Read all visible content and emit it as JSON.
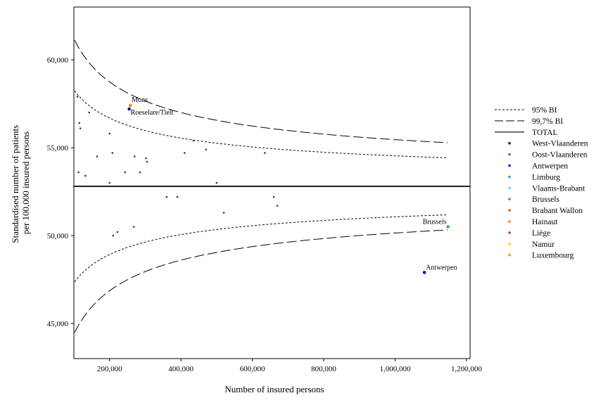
{
  "chart_data": {
    "type": "scatter",
    "subtype": "funnel-plot",
    "xlabel": "Number of insured persons",
    "ylabel_lines": [
      "Standardised number of patients",
      "per 100,000 insured persons"
    ],
    "xlim": [
      100000,
      1210000
    ],
    "ylim": [
      43000,
      63000
    ],
    "x_ticks": [
      200000,
      400000,
      600000,
      800000,
      1000000,
      1200000
    ],
    "x_tick_labels": [
      "200,000",
      "400,000",
      "600,000",
      "800,000",
      "1,000,000",
      "1,200,000"
    ],
    "y_ticks": [
      45000,
      50000,
      55000,
      60000
    ],
    "y_tick_labels": [
      "45,000",
      "50,000",
      "55,000",
      "60,000"
    ],
    "grid": false,
    "legend_position": "right",
    "total": 52800,
    "bands": [
      {
        "name": "95% BI",
        "style": "dotted",
        "ci_z": 1.96
      },
      {
        "name": "99,7% BI",
        "style": "dashed",
        "ci_z": 3.0
      }
    ],
    "band_scale": 28000,
    "total_label": "TOTAL",
    "regions": [
      {
        "name": "West-Vlaanderen",
        "color": "#1a1a8c"
      },
      {
        "name": "Oost-Vlaanderen",
        "color": "#4472c4"
      },
      {
        "name": "Antwerpen",
        "color": "#0000ff"
      },
      {
        "name": "Limburg",
        "color": "#3399dd"
      },
      {
        "name": "Vlaams-Brabant",
        "color": "#88ccee"
      },
      {
        "name": "Brussels",
        "color": "#33bb33"
      },
      {
        "name": "Brabant Wallon",
        "color": "#dd6622"
      },
      {
        "name": "Hainaut",
        "color": "#ff8800"
      },
      {
        "name": "Liège",
        "color": "#c04040"
      },
      {
        "name": "Namur",
        "color": "#ffd700"
      },
      {
        "name": "Luxembourg",
        "color": "#e6a020"
      }
    ],
    "points": [
      {
        "x": 110000,
        "y": 57900,
        "color": "#333333"
      },
      {
        "x": 115000,
        "y": 56400,
        "color": "#333333"
      },
      {
        "x": 118000,
        "y": 56100,
        "color": "#333333"
      },
      {
        "x": 143000,
        "y": 57000,
        "color": "#333333"
      },
      {
        "x": 113000,
        "y": 53600,
        "color": "#333333"
      },
      {
        "x": 132000,
        "y": 53400,
        "color": "#333333"
      },
      {
        "x": 165000,
        "y": 54500,
        "color": "#333333"
      },
      {
        "x": 200000,
        "y": 55800,
        "color": "#333333"
      },
      {
        "x": 208000,
        "y": 54700,
        "color": "#333333"
      },
      {
        "x": 200000,
        "y": 53000,
        "color": "#333333"
      },
      {
        "x": 243000,
        "y": 53600,
        "color": "#333333"
      },
      {
        "x": 270000,
        "y": 54500,
        "color": "#333333"
      },
      {
        "x": 285000,
        "y": 53600,
        "color": "#333333"
      },
      {
        "x": 302000,
        "y": 54400,
        "color": "#333333"
      },
      {
        "x": 305000,
        "y": 54200,
        "color": "#333333"
      },
      {
        "x": 410000,
        "y": 54700,
        "color": "#333333"
      },
      {
        "x": 435000,
        "y": 55400,
        "color": "#333333"
      },
      {
        "x": 470000,
        "y": 54900,
        "color": "#333333"
      },
      {
        "x": 500000,
        "y": 53000,
        "color": "#333333"
      },
      {
        "x": 635000,
        "y": 54700,
        "color": "#333333"
      },
      {
        "x": 360000,
        "y": 52200,
        "color": "#333333"
      },
      {
        "x": 390000,
        "y": 52200,
        "color": "#333333"
      },
      {
        "x": 660000,
        "y": 52200,
        "color": "#333333"
      },
      {
        "x": 670000,
        "y": 51700,
        "color": "#333333"
      },
      {
        "x": 520000,
        "y": 51300,
        "color": "#333333"
      },
      {
        "x": 210000,
        "y": 50000,
        "color": "#333333"
      },
      {
        "x": 222000,
        "y": 50200,
        "color": "#333333"
      },
      {
        "x": 268000,
        "y": 50500,
        "color": "#333333"
      },
      {
        "x": 258000,
        "y": 57400,
        "color": "#ff8800",
        "label": "Mons"
      },
      {
        "x": 255000,
        "y": 57200,
        "color": "#1a1a8c",
        "label": "Roeselare/Tielt"
      },
      {
        "x": 1148000,
        "y": 50500,
        "color": "#33bb33",
        "label": "Brussels"
      },
      {
        "x": 1082000,
        "y": 47900,
        "color": "#0000ff",
        "label": "Antwerpen"
      }
    ]
  }
}
